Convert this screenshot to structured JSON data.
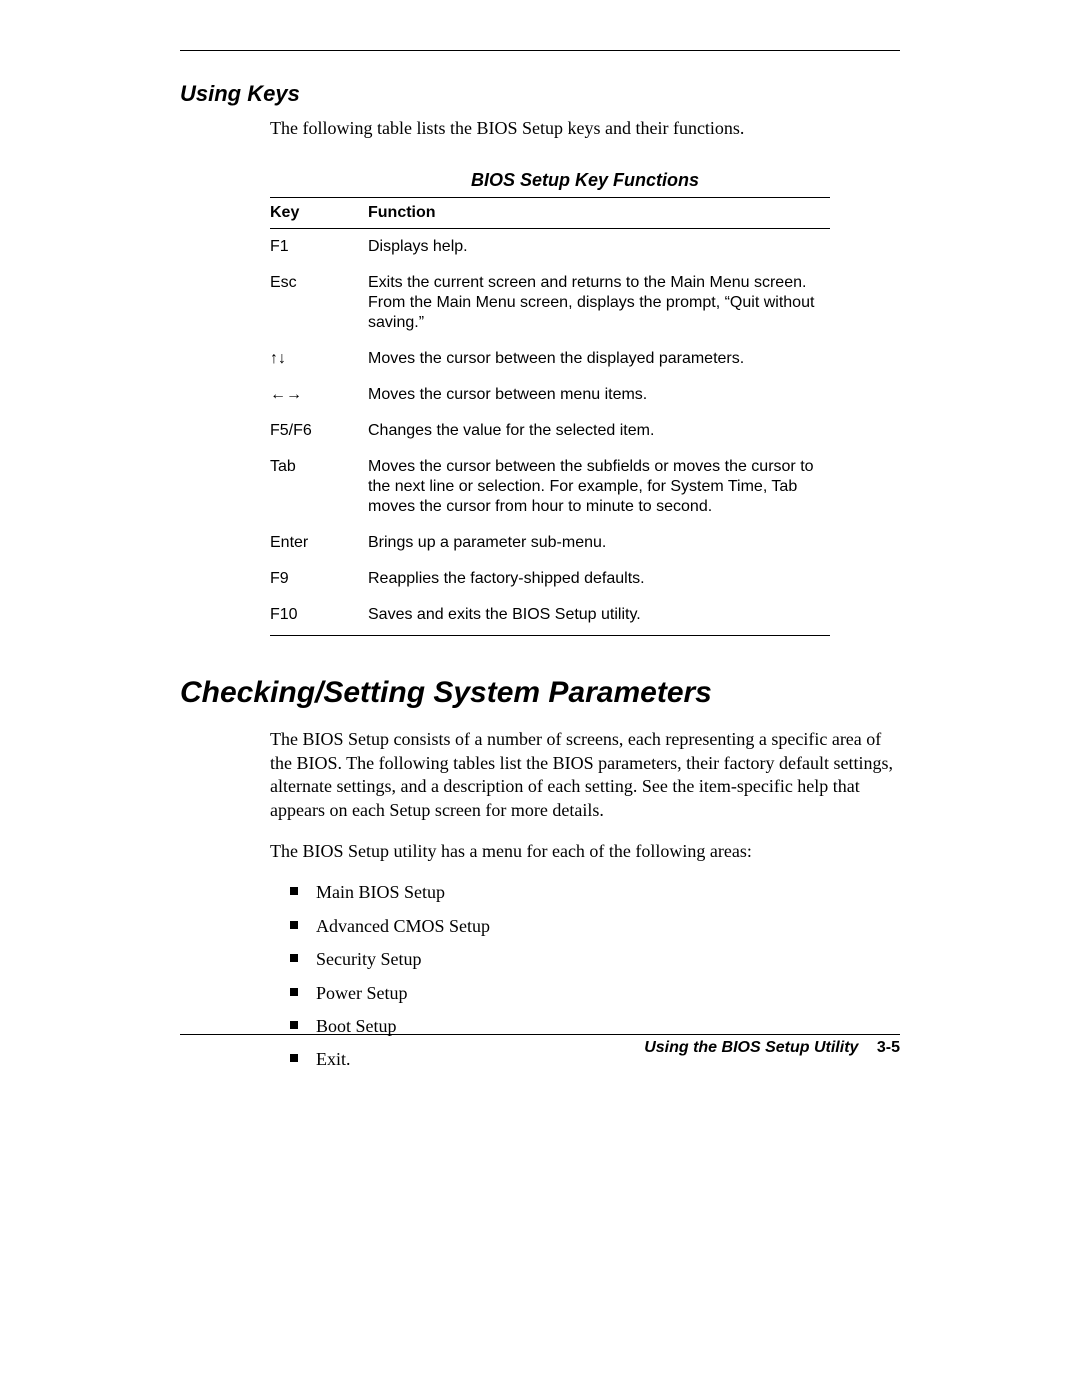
{
  "section1": {
    "heading": "Using Keys",
    "intro": "The following table lists the BIOS Setup keys and their functions."
  },
  "table": {
    "caption": "BIOS Setup Key Functions",
    "columns": [
      "Key",
      "Function"
    ],
    "rows": [
      {
        "key": "F1",
        "func": "Displays help."
      },
      {
        "key": "Esc",
        "func": "Exits the current screen and returns to the Main Menu screen. From the Main Menu screen, displays the prompt, “Quit without saving.”"
      },
      {
        "key": "↑↓",
        "func": "Moves the cursor between the displayed parameters."
      },
      {
        "key": "←→",
        "func": "Moves the cursor between menu items."
      },
      {
        "key": "F5/F6",
        "func": "Changes the value for the selected item."
      },
      {
        "key": "Tab",
        "func": "Moves the cursor between the subfields or moves the cursor to the next line or selection. For example, for System Time, Tab moves the cursor from hour to minute to second."
      },
      {
        "key": "Enter",
        "func": "Brings up a parameter sub-menu."
      },
      {
        "key": "F9",
        "func": "Reapplies the factory-shipped defaults."
      },
      {
        "key": "F10",
        "func": "Saves and exits the BIOS Setup utility."
      }
    ]
  },
  "section2": {
    "heading": "Checking/Setting System Parameters",
    "para1": "The BIOS Setup consists of a number of screens, each representing a specific area of the BIOS. The following tables list the BIOS parameters, their factory default settings, alternate settings, and a description of each setting. See the item-specific help that appears on each Setup screen for more details.",
    "para2": "The BIOS Setup utility has a menu for each of the following areas:",
    "list": [
      "Main BIOS Setup",
      "Advanced CMOS Setup",
      "Security Setup",
      "Power Setup",
      "Boot Setup",
      "Exit."
    ]
  },
  "footer": {
    "title": "Using the BIOS Setup Utility",
    "page": "3-5"
  }
}
